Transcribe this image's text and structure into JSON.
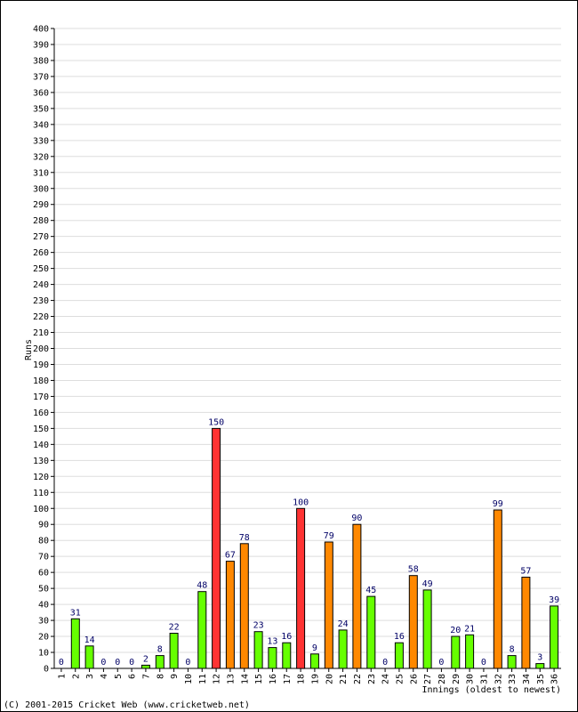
{
  "chart_data": {
    "type": "bar",
    "ylabel": "Runs",
    "xlabel": "Innings (oldest to newest)",
    "ylim": [
      0,
      400
    ],
    "ytick_step": 10,
    "grid": true,
    "categories": [
      "1",
      "2",
      "3",
      "4",
      "5",
      "6",
      "7",
      "8",
      "9",
      "10",
      "11",
      "12",
      "13",
      "14",
      "15",
      "16",
      "17",
      "18",
      "19",
      "20",
      "21",
      "22",
      "23",
      "24",
      "25",
      "26",
      "27",
      "28",
      "29",
      "30",
      "31",
      "32",
      "33",
      "34",
      "35",
      "36"
    ],
    "values": [
      0,
      31,
      14,
      0,
      0,
      0,
      2,
      8,
      22,
      0,
      48,
      150,
      67,
      78,
      23,
      13,
      16,
      100,
      9,
      79,
      24,
      90,
      45,
      0,
      16,
      58,
      49,
      0,
      20,
      21,
      0,
      99,
      8,
      57,
      3,
      39
    ],
    "bar_colors": [
      "green",
      "green",
      "green",
      "green",
      "green",
      "green",
      "green",
      "green",
      "green",
      "green",
      "green",
      "red",
      "orange",
      "orange",
      "green",
      "green",
      "green",
      "red",
      "green",
      "orange",
      "green",
      "orange",
      "green",
      "green",
      "green",
      "orange",
      "green",
      "green",
      "green",
      "green",
      "green",
      "orange",
      "green",
      "orange",
      "green",
      "green"
    ],
    "color_map": {
      "green": "#66ff00",
      "orange": "#ff8800",
      "red": "#ff3333"
    }
  },
  "footer": {
    "copyright": "(C) 2001-2015 Cricket Web (www.cricketweb.net)"
  }
}
